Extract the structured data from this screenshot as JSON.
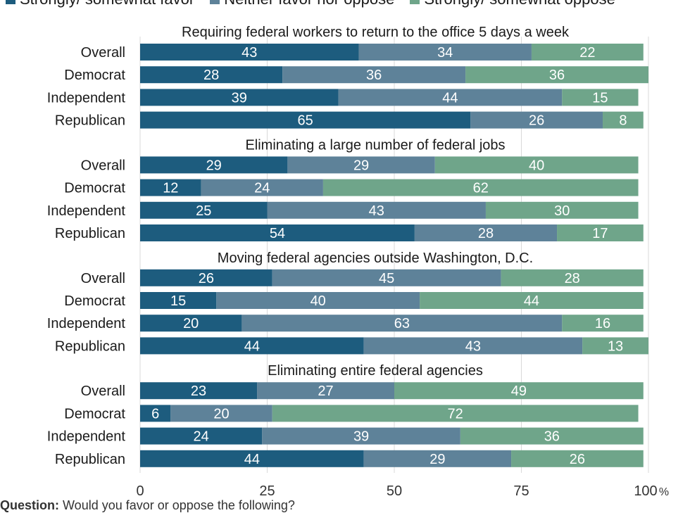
{
  "legend": {
    "items": [
      {
        "label": "Strongly/ somewhat favor",
        "color": "#1d5c7e"
      },
      {
        "label": "Neither favor nor oppose",
        "color": "#5e8299"
      },
      {
        "label": "Strongly/ somewhat oppose",
        "color": "#6fa58a"
      }
    ]
  },
  "footnote": {
    "prefix": "Question:",
    "text": "Would you favor or oppose the following?"
  },
  "chart_data": {
    "type": "bar",
    "orientation": "horizontal",
    "stacked": true,
    "xlim": [
      0,
      100
    ],
    "x_ticks": [
      0,
      25,
      50,
      75,
      100
    ],
    "x_unit": "%",
    "grid": "vertical",
    "legend_position": "top",
    "series": [
      {
        "name": "Strongly/ somewhat favor",
        "color": "#1d5c7e"
      },
      {
        "name": "Neither favor nor oppose",
        "color": "#5e8299"
      },
      {
        "name": "Strongly/ somewhat oppose",
        "color": "#6fa58a"
      }
    ],
    "groups": [
      {
        "title": "Requiring federal workers to return to the office 5 days a week",
        "rows": [
          {
            "label": "Overall",
            "values": [
              43,
              34,
              22
            ]
          },
          {
            "label": "Democrat",
            "values": [
              28,
              36,
              36
            ]
          },
          {
            "label": "Independent",
            "values": [
              39,
              44,
              15
            ]
          },
          {
            "label": "Republican",
            "values": [
              65,
              26,
              8
            ]
          }
        ]
      },
      {
        "title": "Eliminating a large number of federal jobs",
        "rows": [
          {
            "label": "Overall",
            "values": [
              29,
              29,
              40
            ]
          },
          {
            "label": "Democrat",
            "values": [
              12,
              24,
              62
            ]
          },
          {
            "label": "Independent",
            "values": [
              25,
              43,
              30
            ]
          },
          {
            "label": "Republican",
            "values": [
              54,
              28,
              17
            ]
          }
        ]
      },
      {
        "title": "Moving federal agencies outside Washington, D.C.",
        "rows": [
          {
            "label": "Overall",
            "values": [
              26,
              45,
              28
            ]
          },
          {
            "label": "Democrat",
            "values": [
              15,
              40,
              44
            ]
          },
          {
            "label": "Independent",
            "values": [
              20,
              63,
              16
            ]
          },
          {
            "label": "Republican",
            "values": [
              44,
              43,
              13
            ]
          }
        ]
      },
      {
        "title": "Eliminating entire federal agencies",
        "rows": [
          {
            "label": "Overall",
            "values": [
              23,
              27,
              49
            ]
          },
          {
            "label": "Democrat",
            "values": [
              6,
              20,
              72
            ]
          },
          {
            "label": "Independent",
            "values": [
              24,
              39,
              36
            ]
          },
          {
            "label": "Republican",
            "values": [
              44,
              29,
              26
            ]
          }
        ]
      }
    ]
  }
}
